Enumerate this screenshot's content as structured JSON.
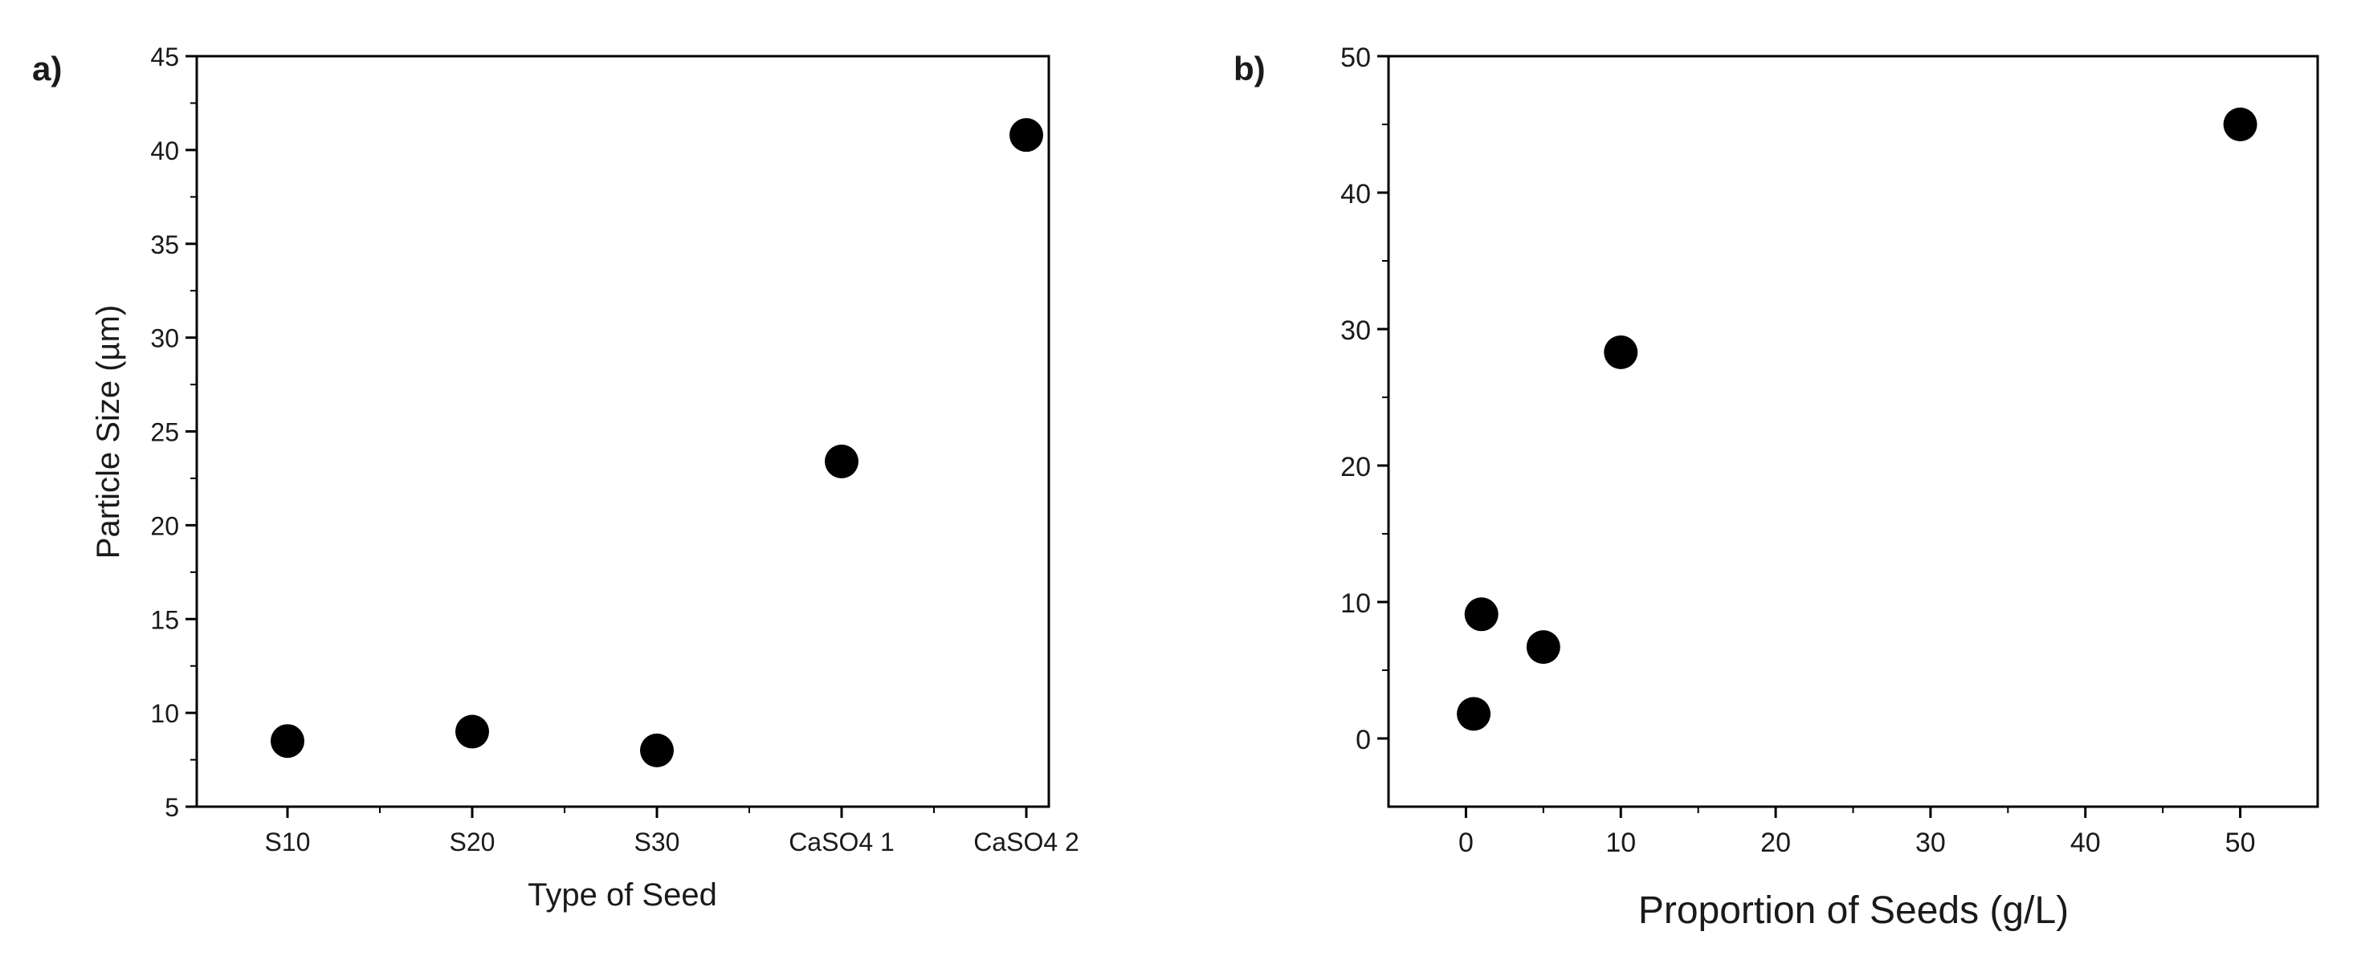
{
  "chart_data": [
    {
      "type": "scatter",
      "panel_label": "a)",
      "xlabel": "Type of Seed",
      "ylabel": "Particle Size (µm)",
      "categories": [
        "S10",
        "S20",
        "S30",
        "CaSO4 1",
        "CaSO4 2"
      ],
      "values": [
        8.5,
        9.0,
        8.0,
        23.4,
        40.8
      ],
      "ylim": [
        5,
        45
      ],
      "yticks": [
        5,
        10,
        15,
        20,
        25,
        30,
        35,
        40,
        45
      ],
      "grid": false,
      "marker_color": "#000000"
    },
    {
      "type": "scatter",
      "panel_label": "b)",
      "xlabel": "Proportion of Seeds (g/L)",
      "ylabel": "",
      "points": [
        {
          "x": 0.5,
          "y": 1.8
        },
        {
          "x": 1,
          "y": 9.1
        },
        {
          "x": 5,
          "y": 6.7
        },
        {
          "x": 10,
          "y": 28.3
        },
        {
          "x": 50,
          "y": 45.0
        }
      ],
      "xlim": [
        -5,
        55
      ],
      "ylim": [
        -5,
        50
      ],
      "xticks": [
        0,
        10,
        20,
        30,
        40,
        50
      ],
      "yticks": [
        0,
        10,
        20,
        30,
        40,
        50
      ],
      "grid": false,
      "marker_color": "#000000"
    }
  ]
}
